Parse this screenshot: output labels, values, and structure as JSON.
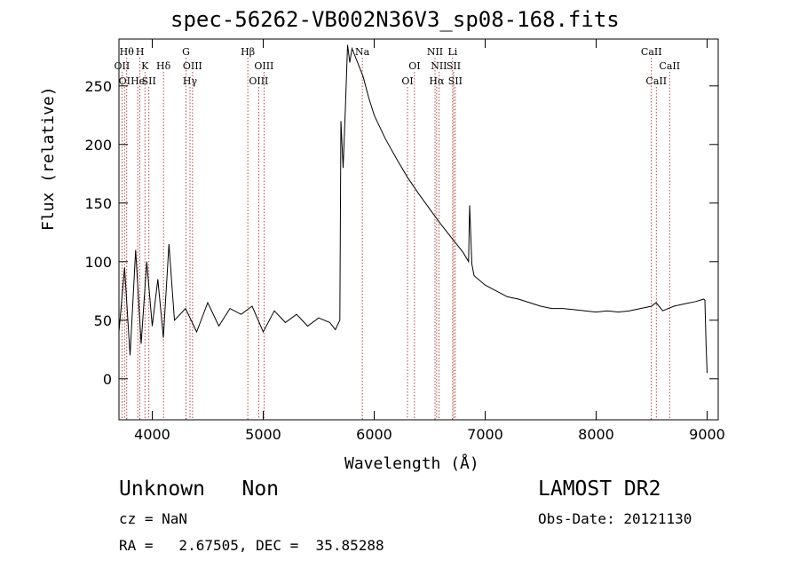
{
  "chart_data": {
    "type": "line",
    "title": "spec-56262-VB002N36V3_sp08-168.fits",
    "xlabel": "Wavelength (Å)",
    "ylabel": "Flux (relative)",
    "xlim": [
      3700,
      9100
    ],
    "ylim": [
      -35,
      290
    ],
    "x_ticks": [
      4000,
      5000,
      6000,
      7000,
      8000,
      9000
    ],
    "y_ticks": [
      0,
      50,
      100,
      150,
      200,
      250
    ],
    "grid": false,
    "series": [
      {
        "x": [
          3700,
          3750,
          3800,
          3850,
          3900,
          3950,
          4000,
          4050,
          4100,
          4150,
          4200,
          4300,
          4400,
          4500,
          4600,
          4700,
          4800,
          4900,
          5000,
          5100,
          5200,
          5300,
          5400,
          5500,
          5600,
          5650,
          5690,
          5700,
          5720,
          5740,
          5760,
          5780,
          5800,
          5850,
          5900,
          5950,
          6000,
          6100,
          6200,
          6300,
          6400,
          6500,
          6600,
          6700,
          6800,
          6850,
          6860,
          6880,
          6900,
          7000,
          7100,
          7200,
          7300,
          7400,
          7500,
          7600,
          7700,
          7800,
          7900,
          8000,
          8100,
          8200,
          8300,
          8400,
          8500,
          8540,
          8600,
          8700,
          8800,
          8900,
          8970,
          8980,
          8990,
          9000
        ],
        "y": [
          40,
          95,
          20,
          110,
          30,
          100,
          45,
          85,
          35,
          115,
          50,
          60,
          40,
          65,
          45,
          60,
          55,
          62,
          40,
          58,
          48,
          55,
          45,
          52,
          48,
          42,
          50,
          220,
          180,
          230,
          285,
          270,
          282,
          270,
          258,
          240,
          225,
          205,
          188,
          172,
          158,
          145,
          132,
          120,
          108,
          100,
          148,
          98,
          88,
          80,
          75,
          70,
          68,
          65,
          62,
          60,
          60,
          59,
          58,
          57,
          58,
          57,
          58,
          60,
          62,
          65,
          58,
          62,
          64,
          66,
          68,
          67,
          30,
          5
        ]
      }
    ],
    "line_labels": [
      {
        "wl": 3727,
        "row": 2,
        "text": "OII"
      },
      {
        "wl": 3750,
        "row": 3,
        "text": "OI"
      },
      {
        "wl": 3770,
        "row": 1,
        "text": "Hθ"
      },
      {
        "wl": 3869,
        "row": 3,
        "text": "He"
      },
      {
        "wl": 3889,
        "row": 1,
        "text": "H"
      },
      {
        "wl": 3934,
        "row": 2,
        "text": "K"
      },
      {
        "wl": 3970,
        "row": 3,
        "text": "SII"
      },
      {
        "wl": 4101,
        "row": 2,
        "text": "Hδ"
      },
      {
        "wl": 4304,
        "row": 1,
        "text": "G"
      },
      {
        "wl": 4340,
        "row": 3,
        "text": "Hγ"
      },
      {
        "wl": 4363,
        "row": 2,
        "text": "OIII"
      },
      {
        "wl": 4861,
        "row": 1,
        "text": "Hβ"
      },
      {
        "wl": 4959,
        "row": 3,
        "text": "OIII"
      },
      {
        "wl": 5007,
        "row": 2,
        "text": "OIII"
      },
      {
        "wl": 5893,
        "row": 1,
        "text": "Na"
      },
      {
        "wl": 6300,
        "row": 3,
        "text": "OI"
      },
      {
        "wl": 6363,
        "row": 2,
        "text": "OI"
      },
      {
        "wl": 6548,
        "row": 1,
        "text": "NII"
      },
      {
        "wl": 6563,
        "row": 3,
        "text": "Hα"
      },
      {
        "wl": 6583,
        "row": 2,
        "text": "NII"
      },
      {
        "wl": 6707,
        "row": 1,
        "text": "Li"
      },
      {
        "wl": 6716,
        "row": 2,
        "text": "SII"
      },
      {
        "wl": 6731,
        "row": 3,
        "text": "SII"
      },
      {
        "wl": 8498,
        "row": 1,
        "text": "CaII"
      },
      {
        "wl": 8542,
        "row": 3,
        "text": "CaII"
      },
      {
        "wl": 8662,
        "row": 2,
        "text": "CaII"
      }
    ]
  },
  "info": {
    "class": "Unknown   Non",
    "survey": "LAMOST DR2",
    "cz": "cz = NaN",
    "obs_date": "Obs-Date: 20121130",
    "radec": "RA =   2.67505, DEC =  35.85288"
  }
}
